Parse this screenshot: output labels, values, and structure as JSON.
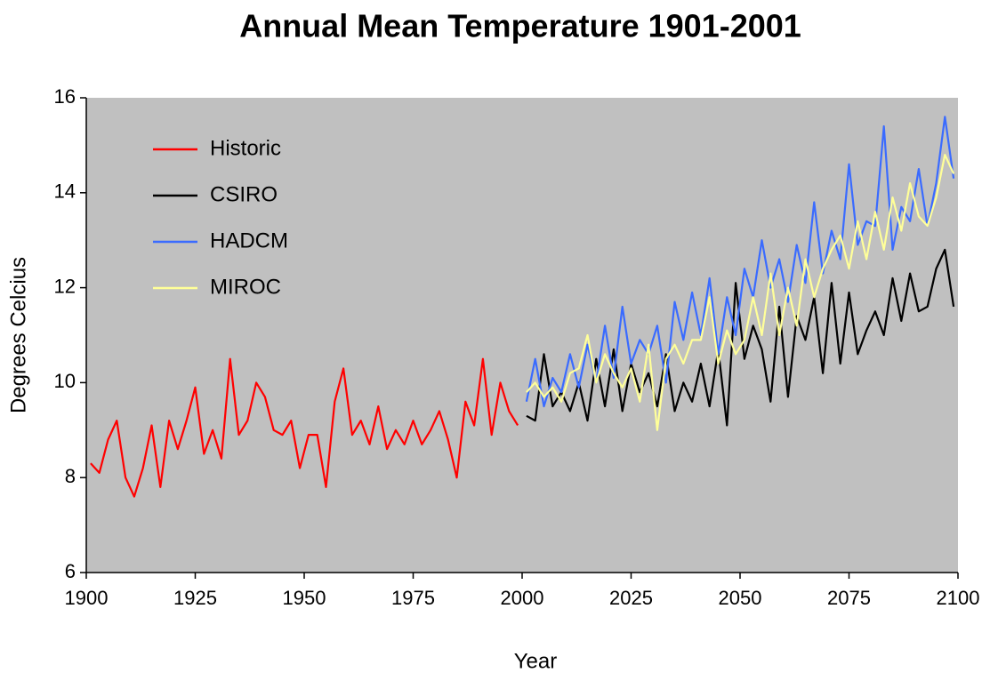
{
  "chart_data": {
    "type": "line",
    "title": "Annual Mean Temperature 1901-2001",
    "x_label": "Year",
    "y_label": "Degrees Celcius",
    "xlim": [
      1900,
      2100
    ],
    "xticks": [
      1900,
      1925,
      1950,
      1975,
      2000,
      2025,
      2050,
      2075,
      2100
    ],
    "ylim": [
      6,
      16
    ],
    "yticks": [
      6,
      8,
      10,
      12,
      14,
      16
    ],
    "grid": false,
    "legend": "upper left",
    "background": "#c0c0c0",
    "series": [
      {
        "name": "Historic",
        "color": "#ff0000",
        "x": [
          1901,
          1903,
          1905,
          1907,
          1909,
          1911,
          1913,
          1915,
          1917,
          1919,
          1921,
          1923,
          1925,
          1927,
          1929,
          1931,
          1933,
          1935,
          1937,
          1939,
          1941,
          1943,
          1945,
          1947,
          1949,
          1951,
          1953,
          1955,
          1957,
          1959,
          1961,
          1963,
          1965,
          1967,
          1969,
          1971,
          1973,
          1975,
          1977,
          1979,
          1981,
          1983,
          1985,
          1987,
          1989,
          1991,
          1993,
          1995,
          1997,
          1999
        ],
        "values": [
          8.3,
          8.1,
          8.8,
          9.2,
          8.0,
          7.6,
          8.2,
          9.1,
          7.8,
          9.2,
          8.6,
          9.2,
          9.9,
          8.5,
          9.0,
          8.4,
          10.5,
          8.9,
          9.2,
          10.0,
          9.7,
          9.0,
          8.9,
          9.2,
          8.2,
          8.9,
          8.9,
          7.8,
          9.6,
          10.3,
          8.9,
          9.2,
          8.7,
          9.5,
          8.6,
          9.0,
          8.7,
          9.2,
          8.7,
          9.0,
          9.4,
          8.8,
          8.0,
          9.6,
          9.1,
          10.5,
          8.9,
          10.0,
          9.4,
          9.1
        ]
      },
      {
        "name": "CSIRO",
        "color": "#000000",
        "x": [
          2001,
          2003,
          2005,
          2007,
          2009,
          2011,
          2013,
          2015,
          2017,
          2019,
          2021,
          2023,
          2025,
          2027,
          2029,
          2031,
          2033,
          2035,
          2037,
          2039,
          2041,
          2043,
          2045,
          2047,
          2049,
          2051,
          2053,
          2055,
          2057,
          2059,
          2061,
          2063,
          2065,
          2067,
          2069,
          2071,
          2073,
          2075,
          2077,
          2079,
          2081,
          2083,
          2085,
          2087,
          2089,
          2091,
          2093,
          2095,
          2097,
          2099
        ],
        "values": [
          9.3,
          9.2,
          10.6,
          9.5,
          9.8,
          9.4,
          10.0,
          9.2,
          10.5,
          9.5,
          10.7,
          9.4,
          10.4,
          9.8,
          10.2,
          9.5,
          10.6,
          9.4,
          10.0,
          9.6,
          10.4,
          9.5,
          10.7,
          9.1,
          12.1,
          10.5,
          11.2,
          10.7,
          9.6,
          11.6,
          9.7,
          11.4,
          10.9,
          11.8,
          10.2,
          12.1,
          10.4,
          11.9,
          10.6,
          11.1,
          11.5,
          11.0,
          12.2,
          11.3,
          12.3,
          11.5,
          11.6,
          12.4,
          12.8,
          11.6
        ]
      },
      {
        "name": "HADCM",
        "color": "#3a6bff",
        "x": [
          2001,
          2003,
          2005,
          2007,
          2009,
          2011,
          2013,
          2015,
          2017,
          2019,
          2021,
          2023,
          2025,
          2027,
          2029,
          2031,
          2033,
          2035,
          2037,
          2039,
          2041,
          2043,
          2045,
          2047,
          2049,
          2051,
          2053,
          2055,
          2057,
          2059,
          2061,
          2063,
          2065,
          2067,
          2069,
          2071,
          2073,
          2075,
          2077,
          2079,
          2081,
          2083,
          2085,
          2087,
          2089,
          2091,
          2093,
          2095,
          2097,
          2099
        ],
        "values": [
          9.6,
          10.5,
          9.5,
          10.1,
          9.8,
          10.6,
          9.9,
          10.8,
          10.0,
          11.2,
          10.1,
          11.6,
          10.4,
          10.9,
          10.6,
          11.2,
          10.0,
          11.7,
          10.9,
          11.9,
          11.0,
          12.2,
          10.6,
          11.8,
          11.0,
          12.4,
          11.8,
          13.0,
          12.0,
          12.6,
          11.7,
          12.9,
          12.1,
          13.8,
          12.3,
          13.2,
          12.6,
          14.6,
          12.9,
          13.4,
          13.3,
          15.4,
          12.8,
          13.7,
          13.4,
          14.5,
          13.3,
          14.2,
          15.6,
          14.3
        ]
      },
      {
        "name": "MIROC",
        "color": "#ffff99",
        "x": [
          2001,
          2003,
          2005,
          2007,
          2009,
          2011,
          2013,
          2015,
          2017,
          2019,
          2021,
          2023,
          2025,
          2027,
          2029,
          2031,
          2033,
          2035,
          2037,
          2039,
          2041,
          2043,
          2045,
          2047,
          2049,
          2051,
          2053,
          2055,
          2057,
          2059,
          2061,
          2063,
          2065,
          2067,
          2069,
          2071,
          2073,
          2075,
          2077,
          2079,
          2081,
          2083,
          2085,
          2087,
          2089,
          2091,
          2093,
          2095,
          2097,
          2099
        ],
        "values": [
          9.8,
          10.0,
          9.7,
          9.9,
          9.6,
          10.2,
          10.3,
          11.0,
          10.0,
          10.6,
          10.2,
          9.9,
          10.3,
          9.6,
          10.8,
          9.0,
          10.5,
          10.8,
          10.4,
          10.9,
          10.9,
          11.8,
          10.4,
          11.1,
          10.6,
          10.9,
          11.8,
          11.0,
          12.3,
          11.0,
          12.0,
          11.2,
          12.6,
          11.8,
          12.4,
          12.8,
          13.1,
          12.4,
          13.4,
          12.6,
          13.6,
          12.8,
          13.9,
          13.2,
          14.2,
          13.5,
          13.3,
          13.9,
          14.8,
          14.4
        ]
      }
    ]
  }
}
